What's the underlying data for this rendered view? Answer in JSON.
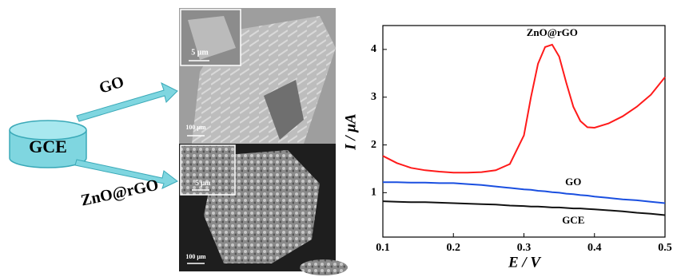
{
  "diagram": {
    "electrode": "GCE",
    "arrows": [
      "GO",
      "ZnO@rGO"
    ],
    "images": [
      {
        "scale_bar": "100 μm",
        "inset_scale_bar": "5 μm"
      },
      {
        "scale_bar": "100 μm",
        "inset_scale_bar": "5 μm"
      }
    ]
  },
  "chart_data": {
    "type": "line",
    "x_label": "E / V",
    "y_label": "I / μA",
    "x": [
      0.1,
      0.12,
      0.14,
      0.16,
      0.18,
      0.2,
      0.22,
      0.24,
      0.26,
      0.28,
      0.3,
      0.31,
      0.32,
      0.33,
      0.34,
      0.35,
      0.36,
      0.37,
      0.38,
      0.39,
      0.4,
      0.42,
      0.44,
      0.46,
      0.48,
      0.5
    ],
    "series": [
      {
        "name": "ZnO@rGO",
        "color": "#ff1a1a",
        "values": [
          1.77,
          1.62,
          1.52,
          1.47,
          1.44,
          1.42,
          1.42,
          1.43,
          1.47,
          1.6,
          2.2,
          3.0,
          3.7,
          4.05,
          4.1,
          3.85,
          3.3,
          2.8,
          2.5,
          2.37,
          2.36,
          2.45,
          2.6,
          2.8,
          3.05,
          3.42
        ]
      },
      {
        "name": "GO",
        "color": "#1a4fe0",
        "values": [
          1.22,
          1.22,
          1.21,
          1.21,
          1.2,
          1.2,
          1.18,
          1.16,
          1.13,
          1.1,
          1.07,
          1.06,
          1.04,
          1.03,
          1.01,
          1.0,
          0.98,
          0.97,
          0.95,
          0.94,
          0.92,
          0.89,
          0.86,
          0.84,
          0.81,
          0.78
        ]
      },
      {
        "name": "GCE",
        "color": "#111111",
        "values": [
          0.82,
          0.81,
          0.8,
          0.8,
          0.79,
          0.78,
          0.77,
          0.76,
          0.75,
          0.73,
          0.72,
          0.71,
          0.71,
          0.7,
          0.69,
          0.69,
          0.68,
          0.67,
          0.67,
          0.66,
          0.65,
          0.63,
          0.61,
          0.58,
          0.56,
          0.53
        ]
      }
    ],
    "xlim": [
      0.1,
      0.5
    ],
    "ylim": [
      0.07,
      4.5
    ],
    "xticks": [
      0.1,
      0.2,
      0.3,
      0.4,
      0.5
    ],
    "yticks": [
      1,
      2,
      3,
      4
    ]
  }
}
